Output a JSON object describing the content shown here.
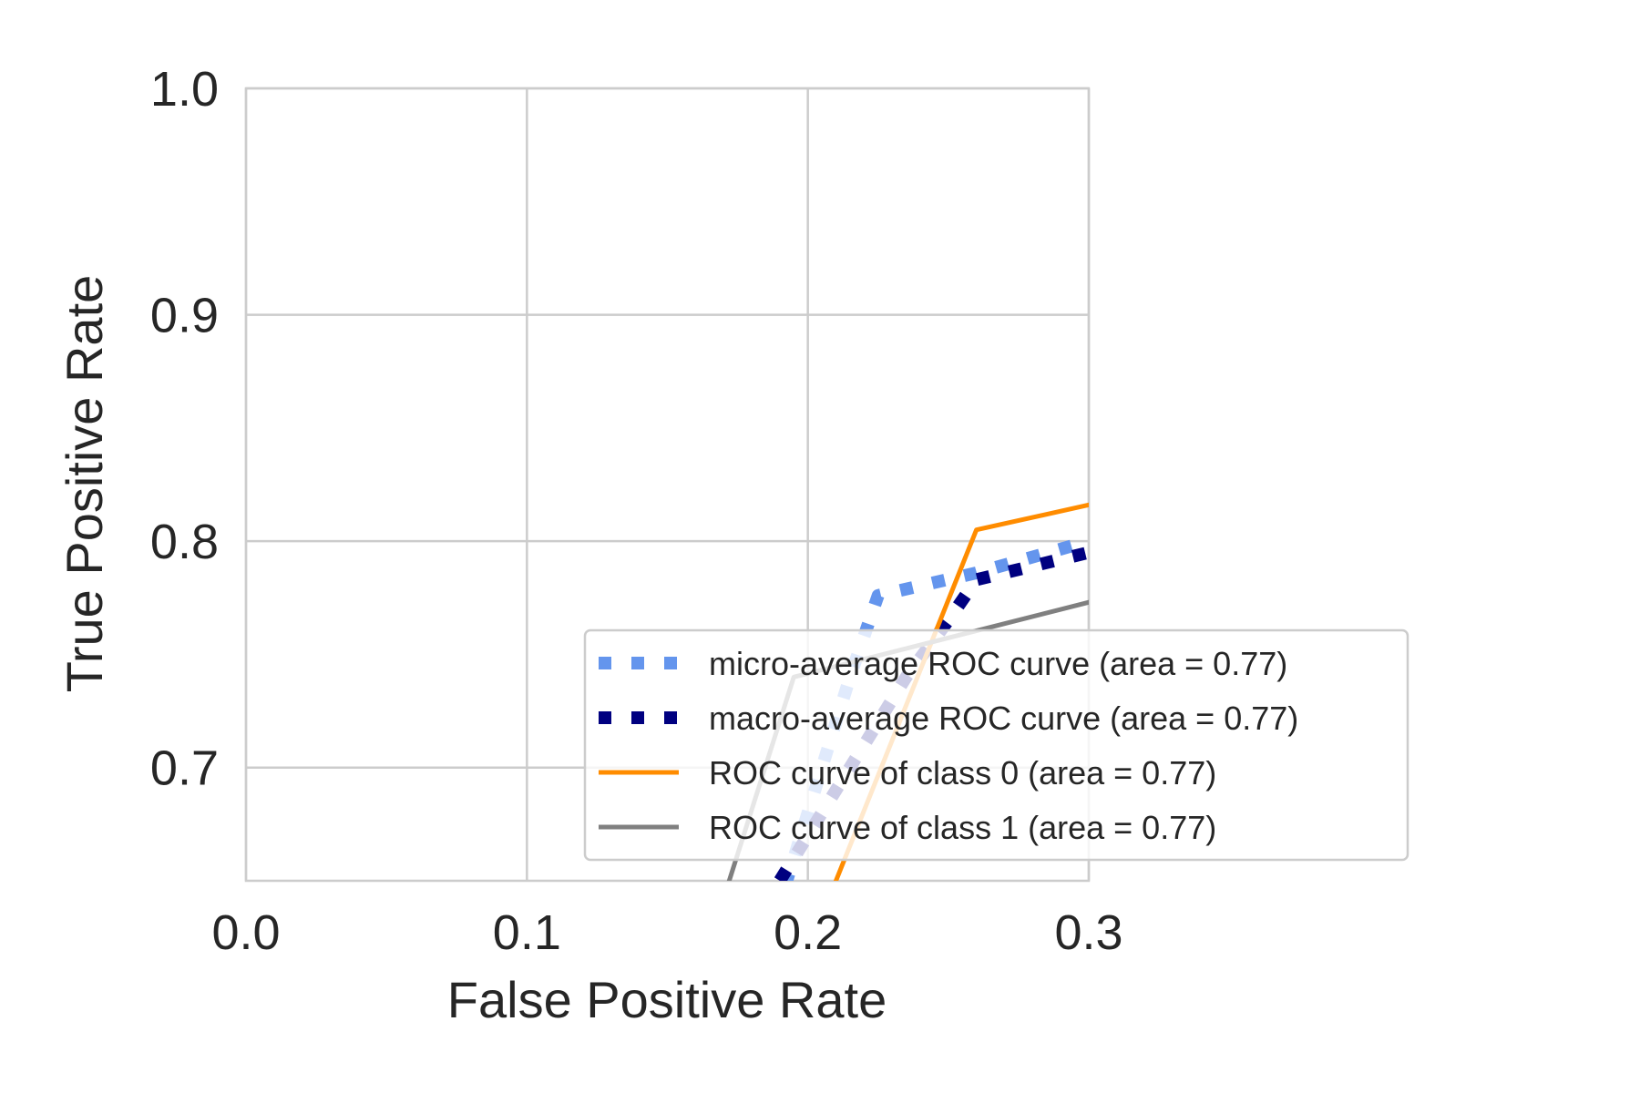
{
  "chart_data": {
    "type": "line",
    "title": "",
    "xlabel": "False Positive Rate",
    "ylabel": "True Positive Rate",
    "xlim": [
      0.0,
      0.3
    ],
    "ylim": [
      0.65,
      1.0
    ],
    "xticks": [
      "0.0",
      "0.1",
      "0.2",
      "0.3"
    ],
    "yticks": [
      "0.7",
      "0.8",
      "0.9",
      "1.0"
    ],
    "grid": true,
    "legend_position": "lower-right",
    "series": [
      {
        "name": "micro-average ROC curve (area = 0.77)",
        "color": "#6495ED",
        "style": "dotted",
        "x": [
          0.185,
          0.2,
          0.215,
          0.225,
          0.26,
          0.3
        ],
        "y": [
          0.62,
          0.68,
          0.74,
          0.776,
          0.786,
          0.8
        ]
      },
      {
        "name": "macro-average ROC curve (area = 0.77)",
        "color": "#000080",
        "style": "dotted",
        "x": [
          0.19,
          0.21,
          0.235,
          0.25,
          0.26,
          0.3
        ],
        "y": [
          0.65,
          0.69,
          0.74,
          0.765,
          0.783,
          0.795
        ]
      },
      {
        "name": "ROC curve of class 0 (area = 0.77)",
        "color": "#FF8C00",
        "style": "solid",
        "x": [
          0.21,
          0.26,
          0.3
        ],
        "y": [
          0.65,
          0.805,
          0.816
        ]
      },
      {
        "name": "ROC curve of class 1 (area = 0.77)",
        "color": "#808080",
        "style": "solid",
        "x": [
          0.172,
          0.195,
          0.3
        ],
        "y": [
          0.65,
          0.74,
          0.773
        ]
      }
    ]
  }
}
